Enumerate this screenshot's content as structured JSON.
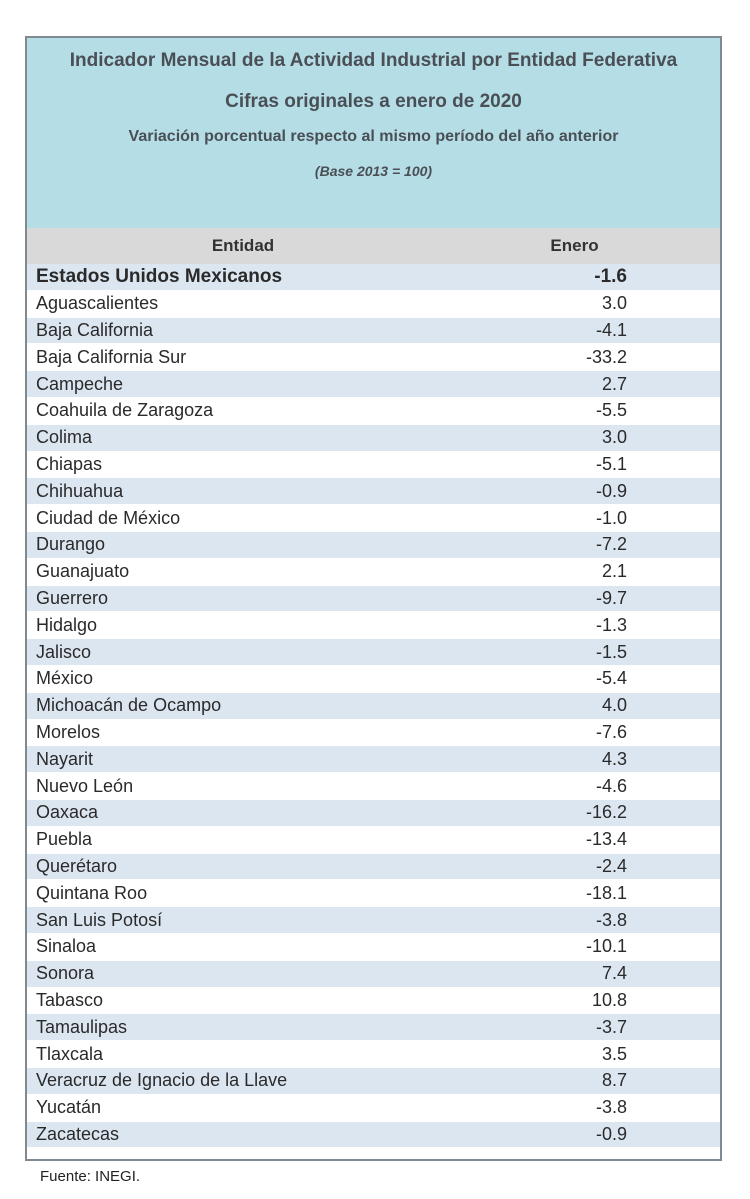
{
  "header": {
    "title": "Indicador Mensual de la Actividad Industrial por Entidad Federativa",
    "subtitle": "Cifras originales a enero de 2020",
    "description": "Variación porcentual respecto al mismo período del año anterior",
    "base": "(Base 2013 = 100)"
  },
  "table": {
    "columns": [
      "Entidad",
      "Enero"
    ],
    "total": {
      "entity": "Estados Unidos Mexicanos",
      "value": "-1.6"
    },
    "rows": [
      {
        "entity": "Aguascalientes",
        "value": "3.0"
      },
      {
        "entity": "Baja California",
        "value": "-4.1"
      },
      {
        "entity": "Baja California Sur",
        "value": "-33.2"
      },
      {
        "entity": "Campeche",
        "value": "2.7"
      },
      {
        "entity": "Coahuila de Zaragoza",
        "value": "-5.5"
      },
      {
        "entity": "Colima",
        "value": "3.0"
      },
      {
        "entity": "Chiapas",
        "value": "-5.1"
      },
      {
        "entity": "Chihuahua",
        "value": "-0.9"
      },
      {
        "entity": "Ciudad de México",
        "value": "-1.0"
      },
      {
        "entity": "Durango",
        "value": "-7.2"
      },
      {
        "entity": "Guanajuato",
        "value": "2.1"
      },
      {
        "entity": "Guerrero",
        "value": "-9.7"
      },
      {
        "entity": "Hidalgo",
        "value": "-1.3"
      },
      {
        "entity": "Jalisco",
        "value": "-1.5"
      },
      {
        "entity": "México",
        "value": "-5.4"
      },
      {
        "entity": "Michoacán de Ocampo",
        "value": "4.0"
      },
      {
        "entity": "Morelos",
        "value": "-7.6"
      },
      {
        "entity": "Nayarit",
        "value": "4.3"
      },
      {
        "entity": "Nuevo León",
        "value": "-4.6"
      },
      {
        "entity": "Oaxaca",
        "value": "-16.2"
      },
      {
        "entity": "Puebla",
        "value": "-13.4"
      },
      {
        "entity": "Querétaro",
        "value": "-2.4"
      },
      {
        "entity": "Quintana Roo",
        "value": "-18.1"
      },
      {
        "entity": "San Luis Potosí",
        "value": "-3.8"
      },
      {
        "entity": "Sinaloa",
        "value": "-10.1"
      },
      {
        "entity": "Sonora",
        "value": "7.4"
      },
      {
        "entity": "Tabasco",
        "value": "10.8"
      },
      {
        "entity": "Tamaulipas",
        "value": "-3.7"
      },
      {
        "entity": "Tlaxcala",
        "value": "3.5"
      },
      {
        "entity": "Veracruz de Ignacio de la Llave",
        "value": "8.7"
      },
      {
        "entity": "Yucatán",
        "value": "-3.8"
      },
      {
        "entity": "Zacatecas",
        "value": "-0.9"
      }
    ]
  },
  "source": "Fuente: INEGI."
}
